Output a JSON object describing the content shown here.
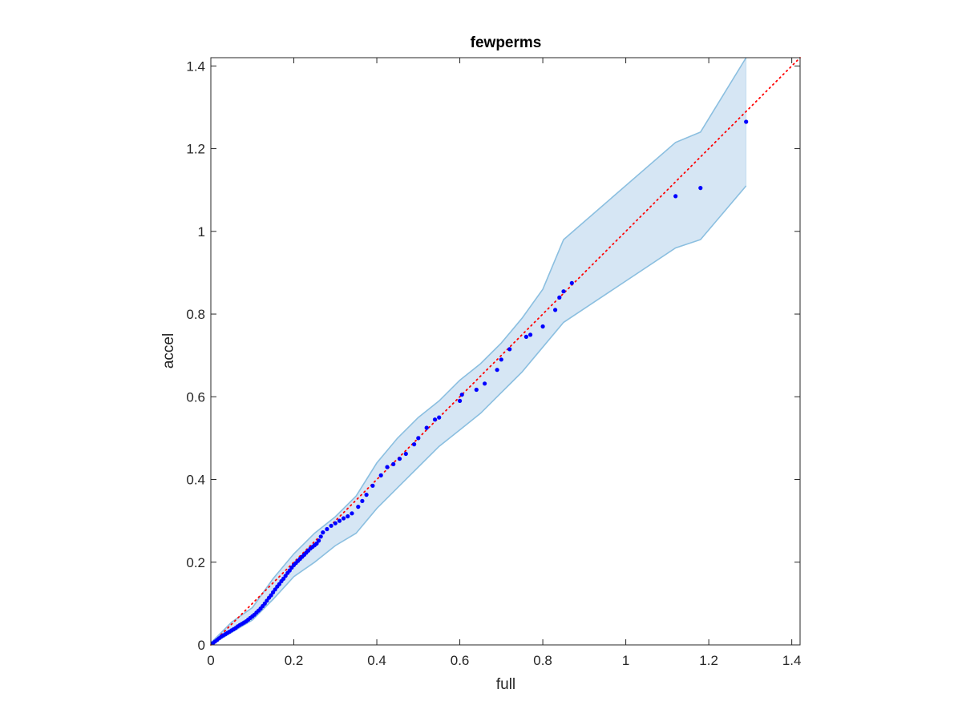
{
  "chart_data": {
    "type": "scatter",
    "title": "fewperms",
    "xlabel": "full",
    "ylabel": "accel",
    "xlim": [
      0,
      1.42
    ],
    "ylim": [
      0,
      1.42
    ],
    "xticks": [
      "0",
      "0.2",
      "0.4",
      "0.6",
      "0.8",
      "1",
      "1.2",
      "1.4"
    ],
    "yticks": [
      "0",
      "0.2",
      "0.4",
      "0.6",
      "0.8",
      "1",
      "1.2",
      "1.4"
    ],
    "grid": false,
    "legend": "none",
    "colors": {
      "points": "#0000ff",
      "reference": "#ff0000",
      "band_fill": "#d6e6f4",
      "band_edge": "#8bbfe0",
      "axes": "#262626"
    },
    "reference_line": {
      "style": "dotted",
      "x": [
        0,
        1.42
      ],
      "y": [
        0,
        1.42
      ]
    },
    "confidence_band": {
      "x": [
        0,
        0.05,
        0.1,
        0.15,
        0.2,
        0.25,
        0.3,
        0.35,
        0.4,
        0.45,
        0.5,
        0.55,
        0.6,
        0.65,
        0.7,
        0.75,
        0.8,
        0.85,
        1.12,
        1.18,
        1.29
      ],
      "upper": [
        0.005,
        0.055,
        0.09,
        0.16,
        0.22,
        0.27,
        0.31,
        0.36,
        0.44,
        0.5,
        0.55,
        0.59,
        0.64,
        0.68,
        0.73,
        0.79,
        0.86,
        0.98,
        1.215,
        1.24,
        1.42
      ],
      "lower": [
        0,
        0.03,
        0.06,
        0.11,
        0.165,
        0.2,
        0.24,
        0.27,
        0.33,
        0.38,
        0.43,
        0.48,
        0.52,
        0.56,
        0.61,
        0.66,
        0.72,
        0.78,
        0.96,
        0.98,
        1.11
      ]
    },
    "series": [
      {
        "x": [
          0.005,
          0.01,
          0.015,
          0.02,
          0.025,
          0.03,
          0.035,
          0.04,
          0.045,
          0.05,
          0.055,
          0.06,
          0.065,
          0.07,
          0.075,
          0.08,
          0.085,
          0.09,
          0.095,
          0.1,
          0.105,
          0.11,
          0.115,
          0.12,
          0.125,
          0.13,
          0.135,
          0.14,
          0.145,
          0.15,
          0.155,
          0.16,
          0.165,
          0.17,
          0.175,
          0.18,
          0.185,
          0.19,
          0.195,
          0.2,
          0.205,
          0.21,
          0.215,
          0.22,
          0.225,
          0.23,
          0.235,
          0.24,
          0.245,
          0.25,
          0.255,
          0.26,
          0.265,
          0.27,
          0.28,
          0.29,
          0.3,
          0.31,
          0.32,
          0.33,
          0.34,
          0.355,
          0.365,
          0.375,
          0.39,
          0.41,
          0.425,
          0.44,
          0.455,
          0.47,
          0.49,
          0.5,
          0.52,
          0.54,
          0.55,
          0.6,
          0.605,
          0.64,
          0.66,
          0.69,
          0.7,
          0.72,
          0.76,
          0.77,
          0.8,
          0.83,
          0.84,
          0.85,
          0.87,
          1.12,
          1.18,
          1.29
        ],
        "y": [
          0.004,
          0.008,
          0.012,
          0.016,
          0.02,
          0.023,
          0.026,
          0.029,
          0.032,
          0.035,
          0.038,
          0.041,
          0.045,
          0.048,
          0.051,
          0.054,
          0.057,
          0.061,
          0.065,
          0.069,
          0.073,
          0.078,
          0.083,
          0.088,
          0.094,
          0.1,
          0.107,
          0.114,
          0.12,
          0.127,
          0.134,
          0.141,
          0.147,
          0.154,
          0.16,
          0.167,
          0.174,
          0.18,
          0.187,
          0.193,
          0.198,
          0.203,
          0.208,
          0.213,
          0.218,
          0.223,
          0.228,
          0.233,
          0.237,
          0.241,
          0.245,
          0.252,
          0.262,
          0.272,
          0.28,
          0.288,
          0.294,
          0.3,
          0.306,
          0.311,
          0.318,
          0.334,
          0.348,
          0.363,
          0.385,
          0.41,
          0.43,
          0.437,
          0.45,
          0.462,
          0.485,
          0.5,
          0.525,
          0.545,
          0.55,
          0.59,
          0.605,
          0.617,
          0.632,
          0.665,
          0.69,
          0.715,
          0.745,
          0.75,
          0.77,
          0.81,
          0.84,
          0.855,
          0.875,
          1.085,
          1.105,
          1.265
        ]
      }
    ]
  }
}
